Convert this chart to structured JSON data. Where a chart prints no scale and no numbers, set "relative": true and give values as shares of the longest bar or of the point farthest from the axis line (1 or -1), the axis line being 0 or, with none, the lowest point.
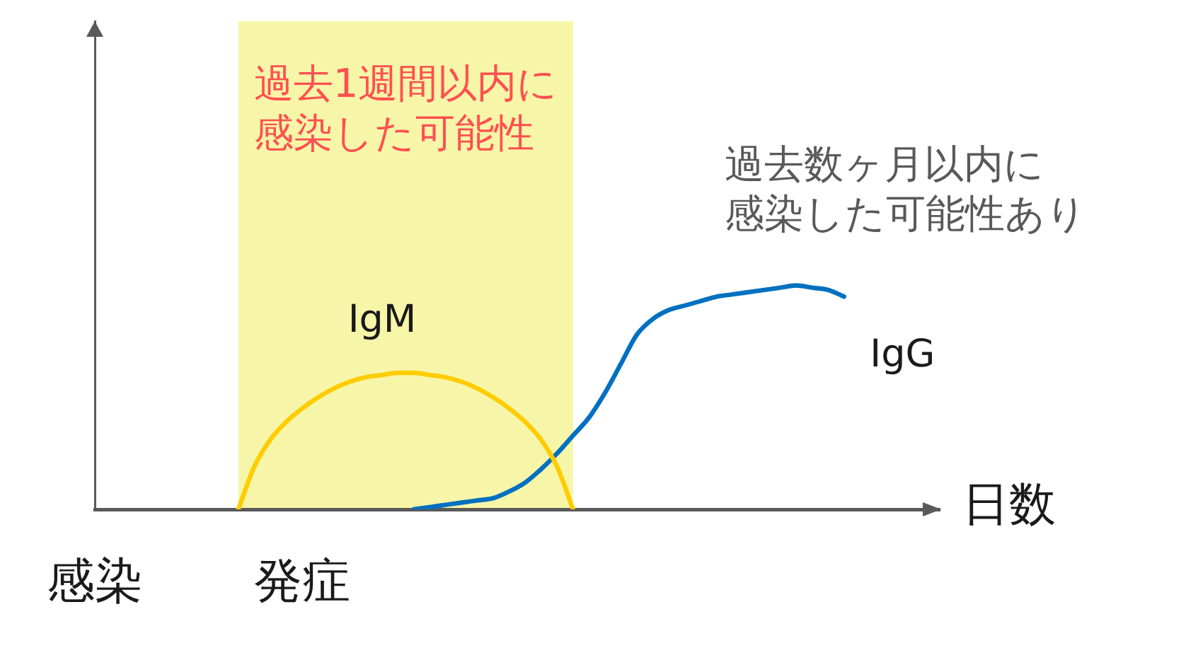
{
  "chart_data": {
    "type": "line",
    "relative": true,
    "xlabel": "日数",
    "tick_labels": "x",
    "marker": "none",
    "categories": [
      "感染",
      null,
      null,
      null,
      null,
      null,
      null,
      null,
      null,
      null,
      null,
      null,
      null,
      "発症",
      null,
      null,
      null,
      null,
      null,
      null,
      null,
      null,
      null,
      null,
      null,
      null,
      null,
      null,
      null,
      null,
      null,
      null,
      null,
      null,
      null,
      null,
      null,
      null,
      null,
      null,
      null,
      null,
      null,
      null,
      null,
      null,
      null,
      null,
      null,
      null,
      null,
      null,
      null,
      null
    ],
    "series": [
      {
        "name": "IgM",
        "color": "#ffcc00",
        "values": [
          null,
          null,
          null,
          null,
          null,
          null,
          null,
          null,
          null,
          0,
          0.19,
          0.31,
          0.39,
          0.45,
          0.5,
          0.54,
          0.57,
          0.59,
          0.6,
          0.61,
          0.61,
          0.6,
          0.59,
          0.57,
          0.54,
          0.5,
          0.45,
          0.39,
          0.31,
          0.19,
          0,
          null,
          null,
          null,
          null,
          null,
          null,
          null,
          null,
          null,
          null,
          null,
          null,
          null,
          null,
          null,
          null,
          null,
          null,
          null,
          null,
          null,
          null,
          null
        ]
      },
      {
        "name": "IgG",
        "color": "#0070c0",
        "values": [
          null,
          null,
          null,
          null,
          null,
          null,
          null,
          null,
          null,
          null,
          null,
          null,
          null,
          null,
          null,
          null,
          null,
          null,
          null,
          null,
          0,
          0.01,
          0.02,
          0.03,
          0.04,
          0.05,
          0.08,
          0.12,
          0.18,
          0.25,
          0.33,
          0.41,
          0.52,
          0.65,
          0.78,
          0.85,
          0.89,
          0.91,
          0.93,
          0.95,
          0.96,
          0.97,
          0.98,
          0.99,
          1,
          0.99,
          0.98,
          0.95,
          null,
          null,
          null,
          null,
          null,
          null
        ]
      }
    ],
    "annotations": [
      "過去1週間以内に感染した可能性",
      "過去数ヶ月以内に感染した可能性あり"
    ]
  }
}
